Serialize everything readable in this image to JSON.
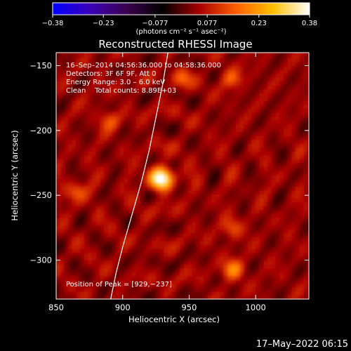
{
  "chart_data": {
    "type": "heatmap",
    "title": "Reconstructed RHESSI Image",
    "xlabel": "Heliocentric X (arcsec)",
    "ylabel": "Heliocentric Y (arcsec)",
    "xlim": [
      850,
      1040
    ],
    "ylim": [
      -330,
      -140
    ],
    "xticks": [
      850,
      900,
      950,
      1000
    ],
    "xtick_labels": [
      "850",
      "900",
      "950",
      "1000"
    ],
    "yticks": [
      -150,
      -200,
      -250,
      -300
    ],
    "ytick_labels": [
      "−150",
      "−200",
      "−250",
      "−300"
    ],
    "colorbar": {
      "range": [
        -0.38,
        0.38
      ],
      "ticks": [
        -0.38,
        -0.23,
        -0.077,
        0.077,
        0.23,
        0.38
      ],
      "tick_labels": [
        "−0.38",
        "−0.23",
        "−0.077",
        "0.077",
        "0.23",
        "0.38"
      ],
      "units_label": "(photons cm⁻² s⁻¹ asec⁻²)",
      "colors": [
        "#0000ff",
        "#3a00b8",
        "#3c0050",
        "#000000",
        "#a80000",
        "#ff6000",
        "#ffc000",
        "#ffffff"
      ]
    },
    "annotations": [
      "16–Sep–2014 04:56:36.000 to 04:58:36.000",
      "Detectors: 3F 6F 9F, Att 0",
      "Energy Range: 3.0 – 6.0 keV",
      "Clean    Total counts: 8.89E+03"
    ],
    "peak_label": "Position of Peak = [929,−237]",
    "peak": {
      "x": 929,
      "y": -237,
      "value": 0.38
    },
    "secondary_sources": [
      {
        "x": 983,
        "y": -307,
        "value": 0.16
      },
      {
        "x": 865,
        "y": -247,
        "value": 0.12
      },
      {
        "x": 890,
        "y": -192,
        "value": 0.1
      },
      {
        "x": 945,
        "y": -160,
        "value": 0.1
      },
      {
        "x": 982,
        "y": -160,
        "value": 0.11
      },
      {
        "x": 982,
        "y": -275,
        "value": 0.1
      }
    ],
    "limb_curve": {
      "x": [
        934,
        930,
        925,
        920,
        914,
        907,
        900,
        895,
        891
      ],
      "y": [
        -140,
        -165,
        -190,
        -215,
        -240,
        -265,
        -290,
        -310,
        -330
      ]
    }
  },
  "footer_timestamp": "17–May–2022 06:15"
}
